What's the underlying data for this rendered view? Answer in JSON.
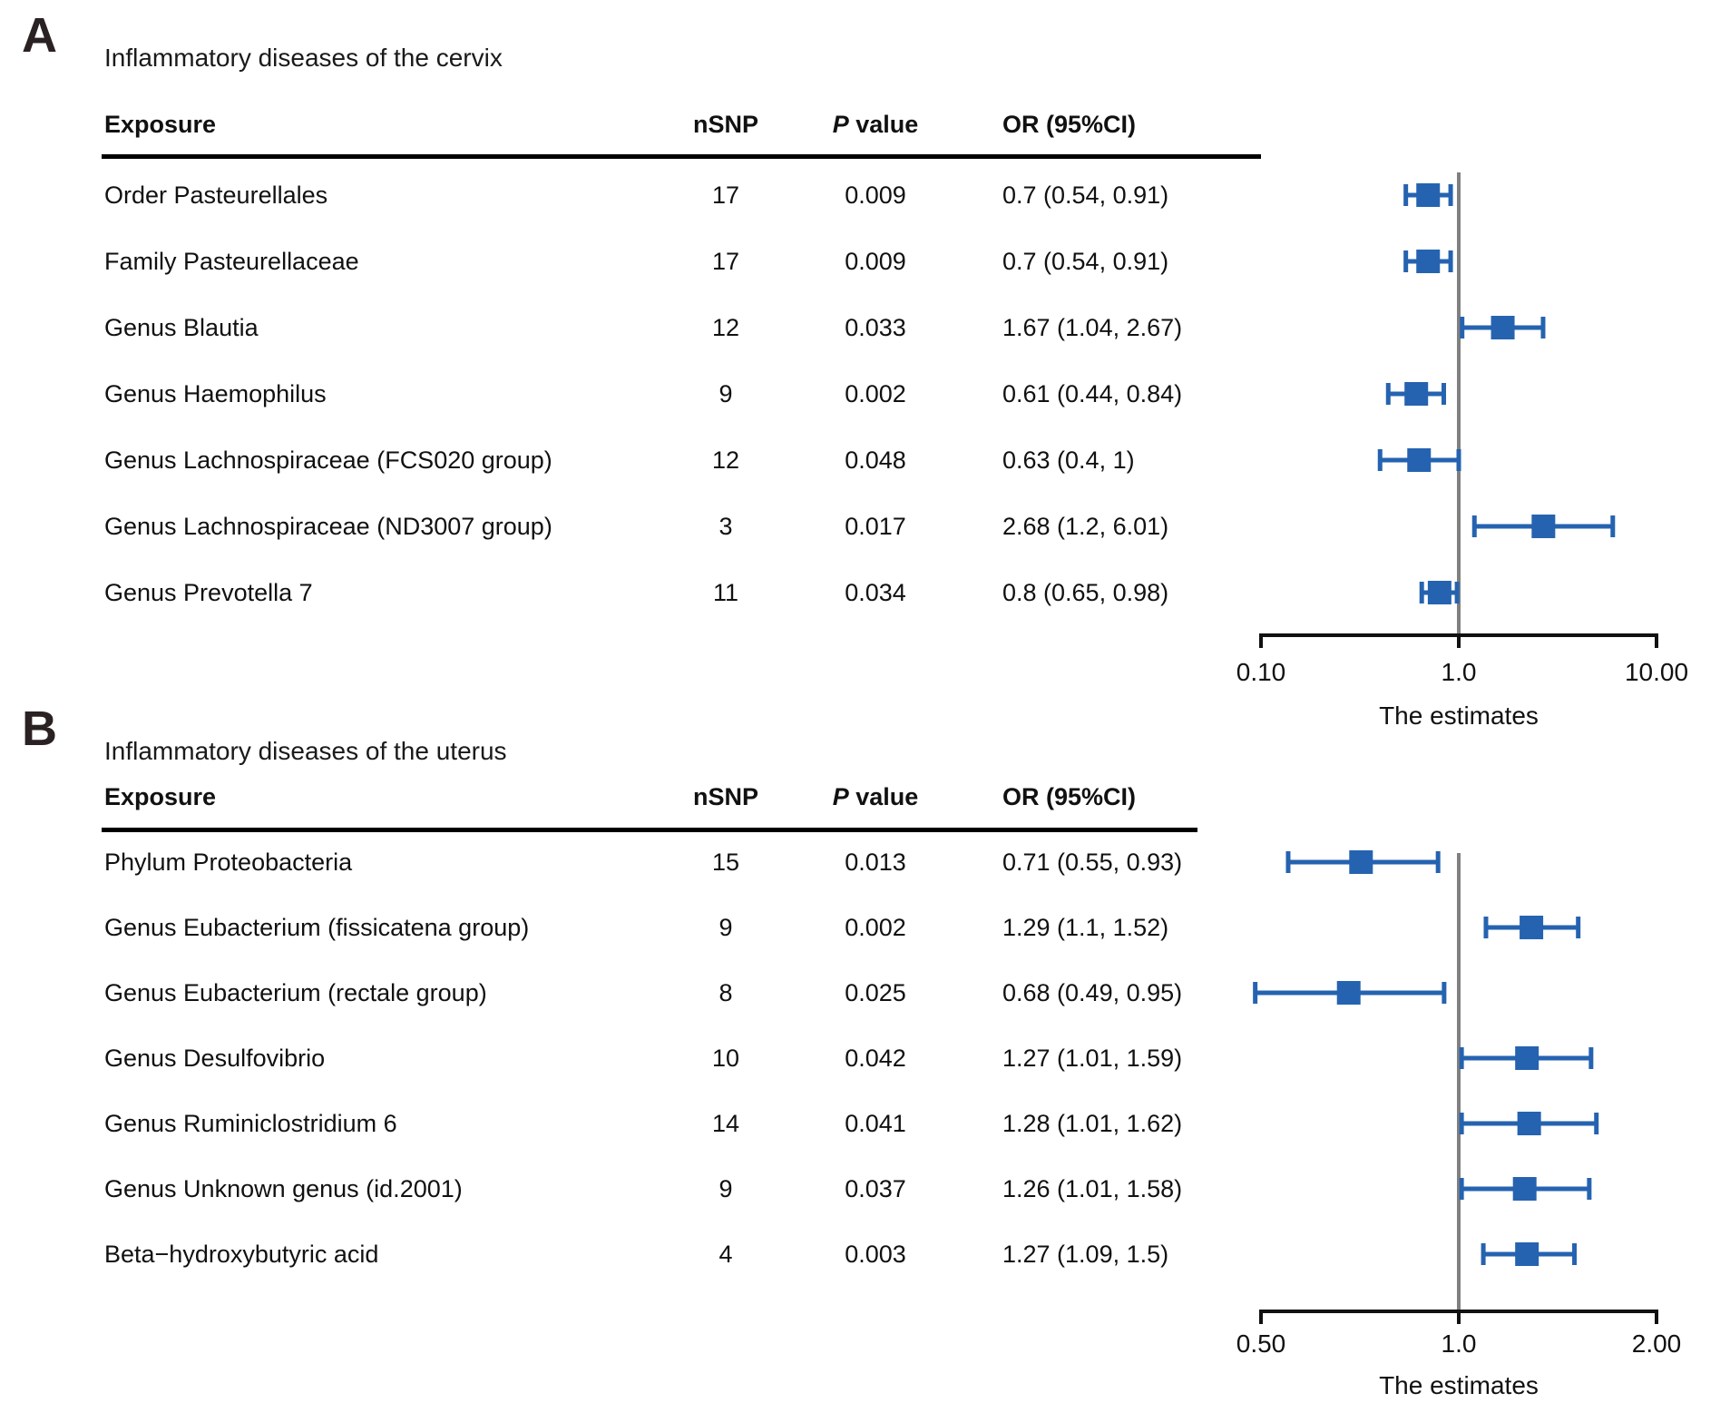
{
  "colors": {
    "marker": "#2563b0",
    "ref_line": "#808080",
    "axis": "#111111",
    "rule": "#000000",
    "panel_letter": "#2a2122"
  },
  "panels": [
    {
      "letter": "A",
      "title": "Inflammatory diseases of the cervix",
      "header": {
        "exposure": "Exposure",
        "nsnp": "nSNP",
        "p_italic": "P",
        "p_rest": " value",
        "or": "OR (95%CI)"
      },
      "rows": [
        {
          "exposure": "Order Pasteurellales",
          "nsnp": "17",
          "p": "0.009",
          "or": "0.7 (0.54, 0.91)"
        },
        {
          "exposure": "Family Pasteurellaceae",
          "nsnp": "17",
          "p": "0.009",
          "or": "0.7 (0.54, 0.91)"
        },
        {
          "exposure": "Genus Blautia",
          "nsnp": "12",
          "p": "0.033",
          "or": "1.67 (1.04, 2.67)"
        },
        {
          "exposure": "Genus Haemophilus",
          "nsnp": "9",
          "p": "0.002",
          "or": "0.61 (0.44, 0.84)"
        },
        {
          "exposure": "Genus Lachnospiraceae (FCS020 group)",
          "nsnp": "12",
          "p": "0.048",
          "or": "0.63 (0.4, 1)"
        },
        {
          "exposure": "Genus Lachnospiraceae (ND3007 group)",
          "nsnp": "3",
          "p": "0.017",
          "or": "2.68 (1.2, 6.01)"
        },
        {
          "exposure": "Genus Prevotella 7",
          "nsnp": "11",
          "p": "0.034",
          "or": "0.8 (0.65, 0.98)"
        }
      ]
    },
    {
      "letter": "B",
      "title": "Inflammatory diseases of the uterus",
      "header": {
        "exposure": "Exposure",
        "nsnp": "nSNP",
        "p_italic": "P",
        "p_rest": " value",
        "or": "OR (95%CI)"
      },
      "rows": [
        {
          "exposure": "Phylum Proteobacteria",
          "nsnp": "15",
          "p": "0.013",
          "or": "0.71 (0.55, 0.93)"
        },
        {
          "exposure": "Genus Eubacterium (fissicatena group)",
          "nsnp": "9",
          "p": "0.002",
          "or": "1.29 (1.1, 1.52)"
        },
        {
          "exposure": "Genus Eubacterium (rectale group)",
          "nsnp": "8",
          "p": "0.025",
          "or": "0.68 (0.49, 0.95)"
        },
        {
          "exposure": "Genus Desulfovibrio",
          "nsnp": "10",
          "p": "0.042",
          "or": "1.27 (1.01, 1.59)"
        },
        {
          "exposure": "Genus Ruminiclostridium 6",
          "nsnp": "14",
          "p": "0.041",
          "or": "1.28 (1.01, 1.62)"
        },
        {
          "exposure": "Genus Unknown genus (id.2001)",
          "nsnp": "9",
          "p": "0.037",
          "or": "1.26 (1.01, 1.58)"
        },
        {
          "exposure": "Beta−hydroxybutyric acid",
          "nsnp": "4",
          "p": "0.003",
          "or": "1.27 (1.09, 1.5)"
        }
      ]
    }
  ],
  "chart_data": [
    {
      "type": "forest",
      "panel": "A",
      "title": "Inflammatory diseases of the cervix",
      "x_scale": "log10",
      "xlim": [
        0.1,
        10.0
      ],
      "x_ticks": [
        0.1,
        1.0,
        10.0
      ],
      "x_tick_labels": [
        "0.10",
        "1.0",
        "10.00"
      ],
      "xlabel": "The estimates",
      "ref_line": 1.0,
      "legend": "none",
      "grid": false,
      "points": [
        {
          "label": "Order Pasteurellales",
          "nsnp": 17,
          "p": 0.009,
          "or": 0.7,
          "lo": 0.54,
          "hi": 0.91
        },
        {
          "label": "Family Pasteurellaceae",
          "nsnp": 17,
          "p": 0.009,
          "or": 0.7,
          "lo": 0.54,
          "hi": 0.91
        },
        {
          "label": "Genus Blautia",
          "nsnp": 12,
          "p": 0.033,
          "or": 1.67,
          "lo": 1.04,
          "hi": 2.67
        },
        {
          "label": "Genus Haemophilus",
          "nsnp": 9,
          "p": 0.002,
          "or": 0.61,
          "lo": 0.44,
          "hi": 0.84
        },
        {
          "label": "Genus Lachnospiraceae (FCS020 group)",
          "nsnp": 12,
          "p": 0.048,
          "or": 0.63,
          "lo": 0.4,
          "hi": 1.0
        },
        {
          "label": "Genus Lachnospiraceae (ND3007 group)",
          "nsnp": 3,
          "p": 0.017,
          "or": 2.68,
          "lo": 1.2,
          "hi": 6.01
        },
        {
          "label": "Genus Prevotella 7",
          "nsnp": 11,
          "p": 0.034,
          "or": 0.8,
          "lo": 0.65,
          "hi": 0.98
        }
      ]
    },
    {
      "type": "forest",
      "panel": "B",
      "title": "Inflammatory diseases of the uterus",
      "x_scale": "log10",
      "xlim": [
        0.5,
        2.0
      ],
      "x_ticks": [
        0.5,
        1.0,
        2.0
      ],
      "x_tick_labels": [
        "0.50",
        "1.0",
        "2.00"
      ],
      "xlabel": "The estimates",
      "ref_line": 1.0,
      "legend": "none",
      "grid": false,
      "points": [
        {
          "label": "Phylum Proteobacteria",
          "nsnp": 15,
          "p": 0.013,
          "or": 0.71,
          "lo": 0.55,
          "hi": 0.93
        },
        {
          "label": "Genus Eubacterium (fissicatena group)",
          "nsnp": 9,
          "p": 0.002,
          "or": 1.29,
          "lo": 1.1,
          "hi": 1.52
        },
        {
          "label": "Genus Eubacterium (rectale group)",
          "nsnp": 8,
          "p": 0.025,
          "or": 0.68,
          "lo": 0.49,
          "hi": 0.95
        },
        {
          "label": "Genus Desulfovibrio",
          "nsnp": 10,
          "p": 0.042,
          "or": 1.27,
          "lo": 1.01,
          "hi": 1.59
        },
        {
          "label": "Genus Ruminiclostridium 6",
          "nsnp": 14,
          "p": 0.041,
          "or": 1.28,
          "lo": 1.01,
          "hi": 1.62
        },
        {
          "label": "Genus Unknown genus (id.2001)",
          "nsnp": 9,
          "p": 0.037,
          "or": 1.26,
          "lo": 1.01,
          "hi": 1.58
        },
        {
          "label": "Beta−hydroxybutyric acid",
          "nsnp": 4,
          "p": 0.003,
          "or": 1.27,
          "lo": 1.09,
          "hi": 1.5
        }
      ]
    }
  ]
}
